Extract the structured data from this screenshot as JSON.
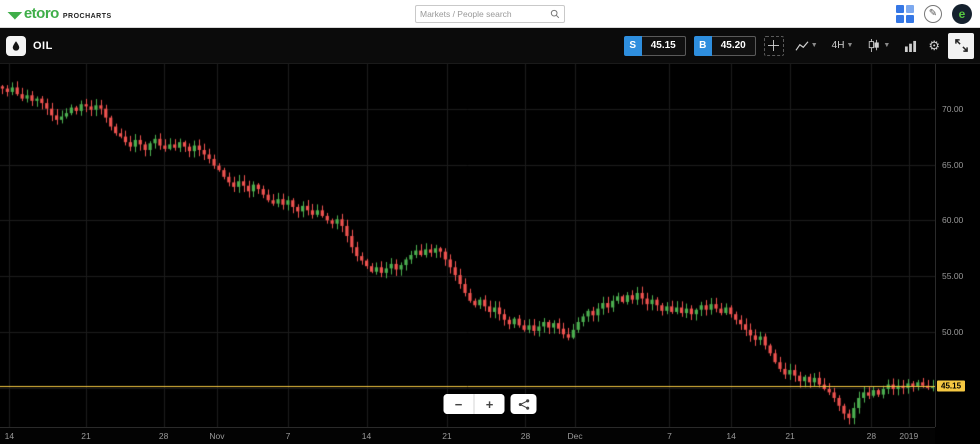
{
  "header": {
    "logo": "etoro",
    "logo_sub": "PROCHARTS",
    "search_placeholder": "Markets / People search"
  },
  "toolbar": {
    "instrument": "OIL",
    "sell_label": "S",
    "sell_price": "45.15",
    "buy_label": "B",
    "buy_price": "45.20",
    "timeframe": "4H"
  },
  "zoom_controls": {
    "minus": "−",
    "plus": "+"
  },
  "chart_data": {
    "type": "candlestick",
    "instrument": "OIL",
    "timeframe": "4H",
    "current_price": 45.15,
    "up_color": "#4caf50",
    "down_color": "#ef5350",
    "grid_color": "#1c1c1c",
    "price_line": {
      "value": 45.15,
      "label": "45.15",
      "color": "#f5c842"
    },
    "y_axis": {
      "range": [
        41.5,
        74.0
      ],
      "tick_values": [
        70,
        65,
        60,
        55,
        50,
        45
      ],
      "ticks": [
        "70.00",
        "65.00",
        "60.00",
        "55.00",
        "50.00",
        "45.00"
      ]
    },
    "x_axis": {
      "labels": [
        {
          "text": "14",
          "pos": 0.01
        },
        {
          "text": "21",
          "pos": 0.092
        },
        {
          "text": "28",
          "pos": 0.175
        },
        {
          "text": "Nov",
          "pos": 0.232
        },
        {
          "text": "7",
          "pos": 0.308
        },
        {
          "text": "14",
          "pos": 0.392
        },
        {
          "text": "21",
          "pos": 0.478
        },
        {
          "text": "28",
          "pos": 0.562
        },
        {
          "text": "Dec",
          "pos": 0.615
        },
        {
          "text": "7",
          "pos": 0.716
        },
        {
          "text": "14",
          "pos": 0.782
        },
        {
          "text": "21",
          "pos": 0.845
        },
        {
          "text": "28",
          "pos": 0.932
        },
        {
          "text": "2019",
          "pos": 0.972
        }
      ]
    },
    "first_open": 72.0,
    "closes": [
      71.8,
      71.5,
      71.9,
      71.3,
      70.9,
      71.2,
      70.7,
      70.9,
      70.5,
      70.0,
      69.4,
      69.0,
      69.3,
      69.6,
      70.1,
      69.8,
      70.4,
      70.2,
      69.9,
      70.3,
      70.0,
      69.2,
      68.4,
      67.8,
      67.5,
      67.0,
      66.6,
      67.2,
      66.8,
      66.3,
      66.9,
      67.3,
      66.7,
      66.4,
      66.8,
      66.5,
      67.0,
      66.6,
      66.2,
      66.7,
      66.3,
      65.9,
      65.5,
      64.9,
      64.5,
      63.9,
      63.4,
      63.0,
      63.5,
      63.1,
      62.6,
      63.2,
      62.8,
      62.3,
      61.8,
      61.5,
      61.9,
      61.4,
      61.8,
      61.2,
      60.8,
      61.3,
      60.9,
      60.5,
      60.9,
      60.4,
      60.0,
      59.7,
      60.1,
      59.5,
      58.6,
      57.6,
      56.8,
      56.4,
      55.9,
      55.4,
      55.8,
      55.3,
      55.7,
      56.1,
      55.6,
      56.0,
      56.5,
      56.9,
      57.3,
      56.9,
      57.4,
      57.1,
      57.5,
      57.2,
      56.5,
      55.8,
      55.1,
      54.3,
      53.5,
      52.8,
      52.4,
      52.9,
      52.3,
      51.8,
      52.2,
      51.6,
      51.1,
      50.7,
      51.2,
      50.6,
      50.2,
      50.6,
      50.1,
      50.5,
      50.9,
      50.4,
      50.8,
      50.3,
      49.8,
      49.5,
      50.2,
      50.9,
      51.4,
      51.9,
      51.5,
      52.1,
      52.6,
      52.2,
      52.8,
      53.2,
      52.7,
      53.3,
      52.9,
      53.5,
      53.0,
      52.5,
      52.9,
      52.4,
      51.9,
      52.3,
      51.8,
      52.2,
      51.7,
      52.1,
      51.6,
      52.0,
      52.4,
      52.0,
      52.5,
      52.1,
      51.7,
      52.2,
      51.6,
      51.1,
      50.7,
      50.2,
      49.7,
      49.3,
      49.6,
      48.8,
      48.1,
      47.3,
      46.7,
      46.2,
      46.6,
      46.1,
      45.6,
      46.0,
      45.5,
      45.9,
      45.3,
      44.9,
      44.6,
      44.1,
      43.4,
      42.7,
      42.3,
      43.2,
      44.1,
      44.6,
      44.3,
      44.8,
      44.4,
      44.9,
      45.3,
      44.9,
      45.2,
      45.0,
      45.4,
      45.1,
      45.5,
      45.2,
      45.0,
      45.15
    ]
  }
}
